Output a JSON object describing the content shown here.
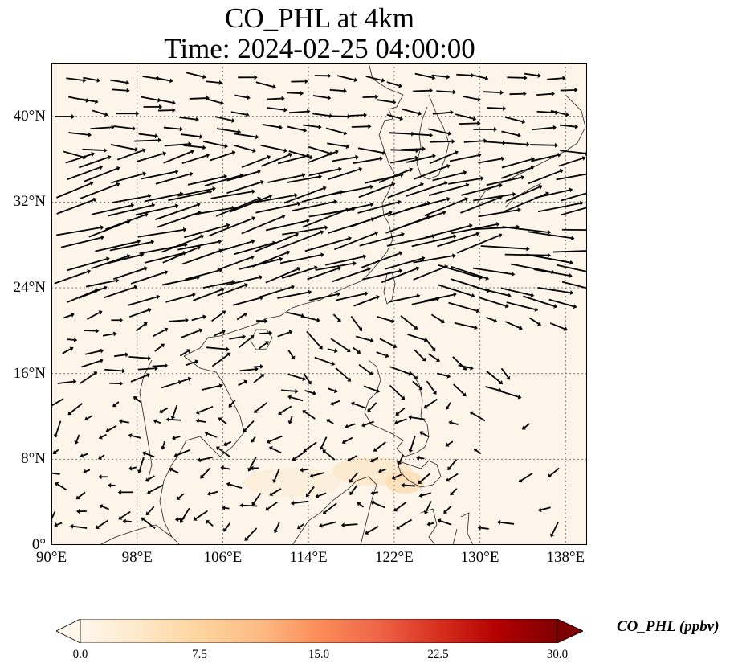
{
  "title": "CO_PHL at 4km",
  "subtitle": "Time: 2024-02-25 04:00:00",
  "lat_ticks": [
    "40°N",
    "32°N",
    "24°N",
    "16°N",
    "8°N",
    "0°"
  ],
  "lon_ticks": [
    "90°E",
    "98°E",
    "106°E",
    "114°E",
    "122°E",
    "130°E",
    "138°E"
  ],
  "colorbar": {
    "label": "CO_PHL (ppbv)",
    "ticks": [
      "0.0",
      "7.5",
      "15.0",
      "22.5",
      "30.0"
    ],
    "colormap": [
      "#fff7ec",
      "#fee8c8",
      "#fdd49e",
      "#fdbb84",
      "#fc8d59",
      "#ef6548",
      "#d7301f",
      "#b30000",
      "#7f0000"
    ]
  },
  "map": {
    "extent": {
      "lon_min": 90,
      "lon_max": 140,
      "lat_min": 0,
      "lat_max": 45
    },
    "grid_lons": [
      90,
      98,
      106,
      114,
      122,
      130,
      138
    ],
    "grid_lats": [
      0,
      8,
      16,
      24,
      32,
      40
    ],
    "background_color": "#fdf5e9",
    "wind_vectors_description": "Westerly wind vectors across the domain; strongest eastward flow between 24°N and 36°N, weaker, variable northeasterly vectors over the South China Sea and Indochina"
  }
}
